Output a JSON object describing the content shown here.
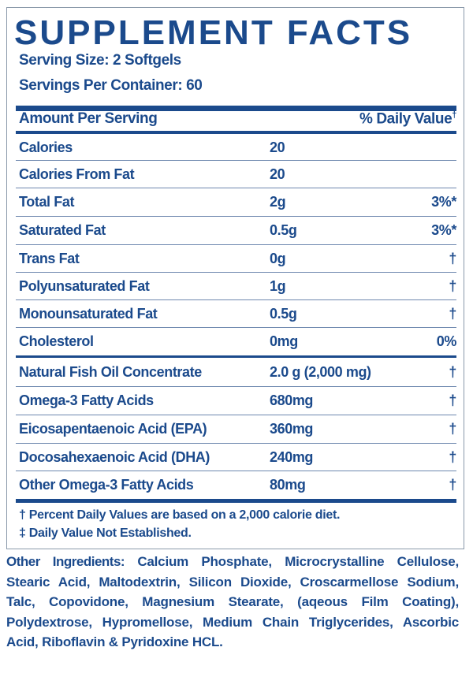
{
  "title": "SUPPLEMENT FACTS",
  "serving_size": "Serving Size: 2 Softgels",
  "servings_per_container": "Servings Per Container: 60",
  "header": {
    "amount": "Amount Per Serving",
    "daily_value": "% Daily Value",
    "daily_value_mark": "†"
  },
  "rows": [
    {
      "name": "Calories",
      "amount": "20",
      "dv": ""
    },
    {
      "name": "Calories From Fat",
      "amount": "20",
      "dv": ""
    },
    {
      "name": "Total Fat",
      "amount": "2g",
      "dv": "3%*"
    },
    {
      "name": "Saturated Fat",
      "amount": "0.5g",
      "dv": "3%*"
    },
    {
      "name": "Trans Fat",
      "amount": "0g",
      "dv": "†"
    },
    {
      "name": "Polyunsaturated Fat",
      "amount": "1g",
      "dv": "†"
    },
    {
      "name": "Monounsaturated Fat",
      "amount": "0.5g",
      "dv": "†"
    },
    {
      "name": "Cholesterol",
      "amount": "0mg",
      "dv": "0%"
    },
    {
      "name": "Natural Fish Oil Concentrate",
      "amount": "2.0 g (2,000 mg)",
      "dv": "†"
    },
    {
      "name": "Omega-3 Fatty Acids",
      "amount": "680mg",
      "dv": "†"
    },
    {
      "name": "Eicosapentaenoic Acid (EPA)",
      "amount": "360mg",
      "dv": "†"
    },
    {
      "name": "Docosahexaenoic Acid (DHA)",
      "amount": "240mg",
      "dv": "†"
    },
    {
      "name": "Other Omega-3 Fatty Acids",
      "amount": "80mg",
      "dv": "†"
    }
  ],
  "footnotes": [
    "† Percent Daily Values are based on a 2,000 calorie diet.",
    "‡ Daily Value Not Established."
  ],
  "other_ingredients": {
    "label": "Other Ingredients:",
    "text": " Calcium Phosphate, Microcrystalline Cellulose, Stearic Acid, Maltodextrin, Silicon Dioxide, Croscarmellose Sodium, Talc, Copovidone, Magnesium Stearate, (aqeous Film Coating), Polydextrose, Hypromellose, Medium Chain Triglycerides, Ascorbic Acid, Riboflavin & Pyridoxine HCL."
  },
  "colors": {
    "text": "#1b4a8c",
    "border": "#8a99aa"
  }
}
